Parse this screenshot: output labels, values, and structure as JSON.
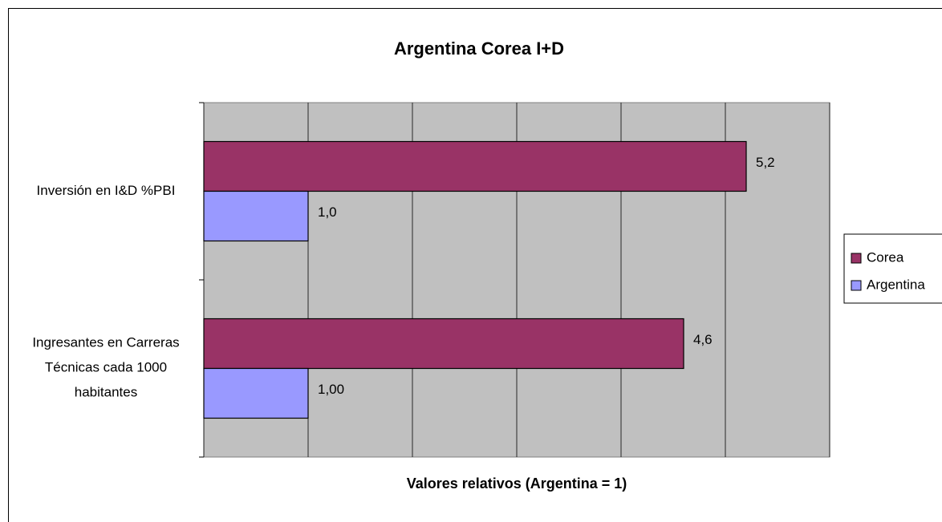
{
  "chart_data": {
    "type": "barh",
    "title": "Argentina Corea I+D",
    "xlabel": "Valores relativos (Argentina = 1)",
    "categories": [
      "Inversión en I&D %PBI",
      "Ingresantes en Carreras Técnicas cada 1000 habitantes"
    ],
    "series": [
      {
        "name": "Corea",
        "color": "#993366",
        "values": [
          5.2,
          4.6
        ],
        "value_labels": [
          "5,2",
          "4,6"
        ]
      },
      {
        "name": "Argentina",
        "color": "#9999ff",
        "values": [
          1.0,
          1.0
        ],
        "value_labels": [
          "1,0",
          "1,00"
        ]
      }
    ],
    "xlim": [
      0,
      6
    ],
    "xticks": [
      0,
      1,
      2,
      3,
      4,
      5,
      6
    ],
    "grid": true,
    "legend": "right"
  }
}
